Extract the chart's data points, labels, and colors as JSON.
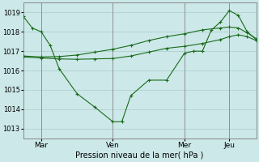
{
  "background_color": "#cce8e8",
  "grid_color": "#aacccc",
  "line_color": "#1a6b1a",
  "xlabel": "Pression niveau de la mer( hPa )",
  "ylim": [
    1012.5,
    1019.5
  ],
  "yticks": [
    1013,
    1014,
    1015,
    1016,
    1017,
    1018,
    1019
  ],
  "xtick_labels": [
    "Mar",
    "Ven",
    "Mer",
    "Jeu"
  ],
  "xtick_positions": [
    12,
    60,
    108,
    138
  ],
  "xlim": [
    0,
    156
  ],
  "s1x": [
    0,
    6,
    12,
    18,
    24,
    36,
    48,
    60,
    66,
    72,
    84,
    96,
    108,
    114,
    120,
    126,
    132,
    138,
    144,
    150,
    156
  ],
  "s1y": [
    1018.8,
    1018.2,
    1018.0,
    1017.3,
    1016.1,
    1014.8,
    1014.1,
    1013.35,
    1013.35,
    1014.7,
    1015.5,
    1015.5,
    1016.9,
    1017.0,
    1017.0,
    1018.1,
    1018.5,
    1019.1,
    1018.85,
    1018.0,
    1017.6
  ],
  "s2x": [
    0,
    12,
    24,
    36,
    48,
    60,
    72,
    84,
    96,
    108,
    120,
    132,
    138,
    144,
    150,
    156
  ],
  "s2y": [
    1016.7,
    1016.65,
    1016.6,
    1016.58,
    1016.6,
    1016.62,
    1016.75,
    1016.95,
    1017.15,
    1017.25,
    1017.4,
    1017.6,
    1017.75,
    1017.85,
    1017.75,
    1017.55
  ],
  "s3x": [
    0,
    12,
    24,
    36,
    48,
    60,
    72,
    84,
    96,
    108,
    120,
    132,
    138,
    144,
    150,
    156
  ],
  "s3y": [
    1016.75,
    1016.7,
    1016.72,
    1016.8,
    1016.95,
    1017.1,
    1017.3,
    1017.55,
    1017.75,
    1017.9,
    1018.1,
    1018.2,
    1018.25,
    1018.2,
    1017.95,
    1017.65
  ]
}
